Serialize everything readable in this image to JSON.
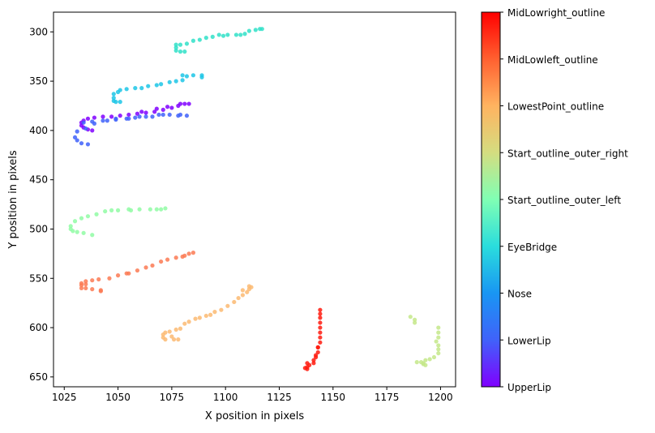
{
  "chart_data": {
    "type": "scatter",
    "title": "",
    "xlabel": "X position in pixels",
    "ylabel": "Y position in pixels",
    "xlim": [
      1020,
      1207
    ],
    "ylim": [
      660,
      280
    ],
    "y_inverted": true,
    "grid": false,
    "xticks": [
      1025,
      1050,
      1075,
      1100,
      1125,
      1150,
      1175,
      1200
    ],
    "yticks": [
      300,
      350,
      400,
      450,
      500,
      550,
      600,
      650
    ],
    "colorbar": {
      "colormap": "rainbow",
      "position": "right",
      "labels": [
        "UpperLip",
        "LowerLip",
        "Nose",
        "EyeBridge",
        "Start_outline_outer_left",
        "Start_outline_outer_right",
        "LowestPoint_outline",
        "MidLowleft_outline",
        "MidLowright_outline"
      ]
    },
    "series": [
      {
        "color": "#8000ff",
        "points": [
          [
            1038,
            400
          ],
          [
            1036,
            399
          ],
          [
            1034,
            397
          ],
          [
            1033,
            395
          ],
          [
            1033,
            392
          ],
          [
            1034,
            390
          ],
          [
            1036,
            388
          ],
          [
            1039,
            387
          ],
          [
            1043,
            386
          ],
          [
            1047,
            386
          ],
          [
            1051,
            385
          ],
          [
            1055,
            384
          ],
          [
            1059,
            383
          ],
          [
            1063,
            382
          ],
          [
            1067,
            381
          ],
          [
            1071,
            379
          ],
          [
            1075,
            377
          ],
          [
            1078,
            375
          ],
          [
            1081,
            373
          ],
          [
            1083,
            373
          ],
          [
            1079,
            373
          ],
          [
            1073,
            376
          ],
          [
            1068,
            378
          ],
          [
            1061,
            381
          ]
        ]
      },
      {
        "color": "#4062fa",
        "points": [
          [
            1036,
            414
          ],
          [
            1033,
            413
          ],
          [
            1031,
            410
          ],
          [
            1030,
            407
          ],
          [
            1031,
            401
          ],
          [
            1035,
            398
          ],
          [
            1039,
            393
          ],
          [
            1045,
            390
          ],
          [
            1049,
            388
          ],
          [
            1054,
            388
          ],
          [
            1058,
            387
          ],
          [
            1063,
            386
          ],
          [
            1069,
            384
          ],
          [
            1074,
            384
          ],
          [
            1079,
            384
          ],
          [
            1082,
            385
          ],
          [
            1078,
            385
          ],
          [
            1071,
            384
          ],
          [
            1066,
            386
          ],
          [
            1060,
            386
          ],
          [
            1055,
            388
          ],
          [
            1049,
            389
          ],
          [
            1043,
            390
          ],
          [
            1038,
            391
          ],
          [
            1034,
            392
          ]
        ]
      },
      {
        "color": "#1cc6e6",
        "points": [
          [
            1048,
            363
          ],
          [
            1048,
            367
          ],
          [
            1048,
            370
          ],
          [
            1049,
            371
          ],
          [
            1051,
            371
          ],
          [
            1050,
            361
          ],
          [
            1051,
            359
          ],
          [
            1054,
            358
          ],
          [
            1058,
            357
          ],
          [
            1061,
            357
          ],
          [
            1064,
            355
          ],
          [
            1068,
            354
          ],
          [
            1070,
            353
          ],
          [
            1074,
            351
          ],
          [
            1077,
            350
          ],
          [
            1080,
            349
          ],
          [
            1082,
            345
          ],
          [
            1085,
            344
          ],
          [
            1089,
            344
          ],
          [
            1089,
            346
          ],
          [
            1080,
            344
          ]
        ]
      },
      {
        "color": "#30e0c8",
        "points": [
          [
            1077,
            319
          ],
          [
            1079,
            320
          ],
          [
            1081,
            320
          ],
          [
            1077,
            316
          ],
          [
            1077,
            313
          ],
          [
            1079,
            313
          ],
          [
            1082,
            312
          ],
          [
            1085,
            309
          ],
          [
            1088,
            308
          ],
          [
            1091,
            306
          ],
          [
            1094,
            305
          ],
          [
            1097,
            303
          ],
          [
            1099,
            304
          ],
          [
            1101,
            303
          ],
          [
            1105,
            303
          ],
          [
            1107,
            303
          ],
          [
            1109,
            302
          ],
          [
            1111,
            299
          ],
          [
            1114,
            298
          ],
          [
            1116,
            297
          ],
          [
            1117,
            297
          ]
        ]
      },
      {
        "color": "#90fca4",
        "points": [
          [
            1038,
            506
          ],
          [
            1034,
            504
          ],
          [
            1031,
            503
          ],
          [
            1029,
            502
          ],
          [
            1028,
            500
          ],
          [
            1028,
            497
          ],
          [
            1030,
            492
          ],
          [
            1033,
            489
          ],
          [
            1036,
            487
          ],
          [
            1040,
            485
          ],
          [
            1044,
            482
          ],
          [
            1047,
            481
          ],
          [
            1050,
            481
          ],
          [
            1055,
            480
          ],
          [
            1060,
            480
          ],
          [
            1065,
            480
          ],
          [
            1068,
            480
          ],
          [
            1070,
            480
          ],
          [
            1072,
            479
          ],
          [
            1056,
            481
          ]
        ]
      },
      {
        "color": "#c4e88a",
        "points": [
          [
            1186,
            589
          ],
          [
            1188,
            592
          ],
          [
            1188,
            595
          ],
          [
            1199,
            600
          ],
          [
            1199,
            605
          ],
          [
            1199,
            610
          ],
          [
            1198,
            614
          ],
          [
            1199,
            618
          ],
          [
            1199,
            622
          ],
          [
            1199,
            626
          ],
          [
            1197,
            630
          ],
          [
            1195,
            632
          ],
          [
            1193,
            633
          ],
          [
            1192,
            636
          ],
          [
            1193,
            638
          ],
          [
            1192,
            637
          ],
          [
            1191,
            635
          ],
          [
            1189,
            635
          ]
        ]
      },
      {
        "color": "#fcba72",
        "points": [
          [
            1072,
            605
          ],
          [
            1071,
            607
          ],
          [
            1071,
            610
          ],
          [
            1072,
            612
          ],
          [
            1076,
            612
          ],
          [
            1078,
            612
          ],
          [
            1075,
            609
          ],
          [
            1074,
            604
          ],
          [
            1077,
            602
          ],
          [
            1079,
            601
          ],
          [
            1081,
            596
          ],
          [
            1083,
            594
          ],
          [
            1086,
            591
          ],
          [
            1088,
            590
          ],
          [
            1091,
            588
          ],
          [
            1093,
            587
          ],
          [
            1095,
            584
          ],
          [
            1098,
            582
          ],
          [
            1101,
            578
          ],
          [
            1104,
            574
          ],
          [
            1106,
            570
          ],
          [
            1108,
            567
          ],
          [
            1110,
            564
          ],
          [
            1111,
            561
          ],
          [
            1112,
            559
          ],
          [
            1111,
            558
          ],
          [
            1108,
            562
          ]
        ]
      },
      {
        "color": "#fc7a54",
        "points": [
          [
            1038,
            561
          ],
          [
            1042,
            562
          ],
          [
            1042,
            563
          ],
          [
            1035,
            560
          ],
          [
            1033,
            560
          ],
          [
            1033,
            557
          ],
          [
            1033,
            555
          ],
          [
            1035,
            553
          ],
          [
            1038,
            552
          ],
          [
            1041,
            551
          ],
          [
            1046,
            550
          ],
          [
            1050,
            547
          ],
          [
            1055,
            545
          ],
          [
            1059,
            542
          ],
          [
            1063,
            539
          ],
          [
            1066,
            537
          ],
          [
            1070,
            533
          ],
          [
            1073,
            531
          ],
          [
            1077,
            529
          ],
          [
            1081,
            527
          ],
          [
            1083,
            525
          ],
          [
            1085,
            524
          ],
          [
            1080,
            528
          ],
          [
            1054,
            545
          ],
          [
            1035,
            556
          ]
        ]
      },
      {
        "color": "#ff1a0e",
        "points": [
          [
            1138,
            642
          ],
          [
            1138,
            640
          ],
          [
            1138,
            636
          ],
          [
            1141,
            633
          ],
          [
            1142,
            630
          ],
          [
            1143,
            625
          ],
          [
            1143,
            620
          ],
          [
            1144,
            615
          ],
          [
            1144,
            610
          ],
          [
            1144,
            605
          ],
          [
            1144,
            600
          ],
          [
            1144,
            595
          ],
          [
            1144,
            590
          ],
          [
            1144,
            586
          ],
          [
            1144,
            582
          ],
          [
            1143,
            620
          ],
          [
            1142,
            628
          ],
          [
            1141,
            636
          ],
          [
            1139,
            638
          ],
          [
            1137,
            641
          ]
        ]
      }
    ]
  }
}
